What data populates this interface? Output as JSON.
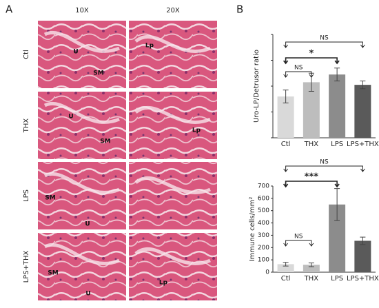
{
  "panel_a": {
    "label": "A",
    "columns": [
      "10X",
      "20X"
    ],
    "rows": [
      {
        "label": "Ctl",
        "tags": [
          [
            "U",
            "SM"
          ],
          [
            "Lp"
          ]
        ]
      },
      {
        "label": "THX",
        "tags": [
          [
            "U",
            "SM"
          ],
          [
            "Lp"
          ]
        ]
      },
      {
        "label": "LPS",
        "tags": [
          [
            "SM",
            "U"
          ],
          []
        ]
      },
      {
        "label": "LPS+THX",
        "tags": [
          [
            "SM",
            "U"
          ],
          [
            "Lp"
          ]
        ]
      }
    ]
  },
  "panel_b_label": "B",
  "chart_data": [
    {
      "type": "bar",
      "y_label": "Uro-LP/Detrusor ratio",
      "categories": [
        "Ctl",
        "THX",
        "LPS",
        "LPS+THX"
      ],
      "values": [
        0.32,
        0.43,
        0.49,
        0.41
      ],
      "errors": [
        0.05,
        0.07,
        0.05,
        0.03
      ],
      "colors": [
        "#d9d9d9",
        "#bdbdbd",
        "#8c8c8c",
        "#5a5a5a"
      ],
      "ylim": [
        0,
        0.8
      ],
      "yticks": [
        0,
        0.2,
        0.4,
        0.6,
        0.8
      ],
      "show_tick_labels": false,
      "annotations": [
        {
          "label": "NS",
          "from": "Ctl",
          "to": "LPS+THX"
        },
        {
          "label": "*",
          "from": "Ctl",
          "to": "LPS"
        },
        {
          "label": "NS",
          "from": "Ctl",
          "to": "THX"
        }
      ]
    },
    {
      "type": "bar",
      "y_label": "Immune cells/mm²",
      "categories": [
        "Ctl",
        "THX",
        "LPS",
        "LPS+THX"
      ],
      "values": [
        65,
        60,
        550,
        255
      ],
      "errors": [
        15,
        15,
        130,
        30
      ],
      "colors": [
        "#d9d9d9",
        "#bdbdbd",
        "#8c8c8c",
        "#5a5a5a"
      ],
      "ylim": [
        0,
        700
      ],
      "yticks": [
        0,
        100,
        200,
        300,
        400,
        500,
        600,
        700
      ],
      "show_tick_labels": true,
      "annotations": [
        {
          "label": "NS",
          "from": "Ctl",
          "to": "LPS+THX"
        },
        {
          "label": "***",
          "from": "Ctl",
          "to": "LPS"
        },
        {
          "label": "NS",
          "from": "Ctl",
          "to": "THX"
        }
      ]
    }
  ]
}
